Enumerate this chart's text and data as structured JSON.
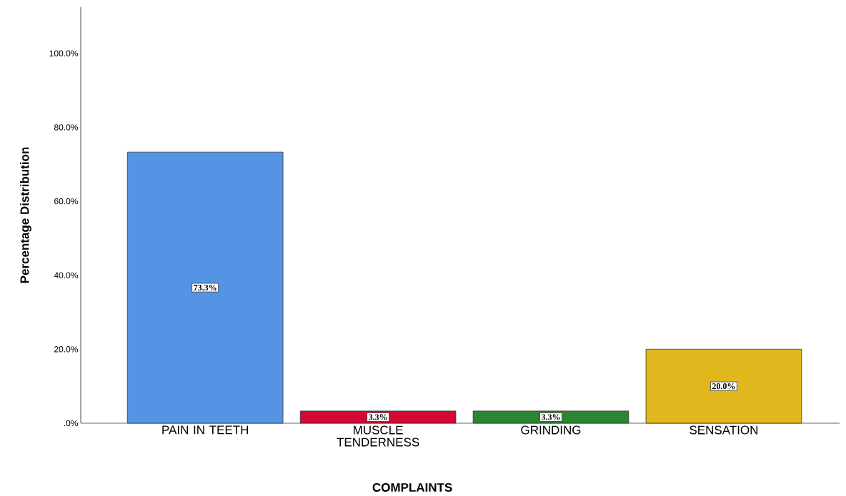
{
  "chart_data": {
    "type": "bar",
    "xlabel": "COMPLAINTS",
    "ylabel": "Percentage Distribution",
    "categories": [
      "PAIN IN TEETH",
      "MUSCLE TENDERNESS",
      "GRINDING",
      "SENSATION"
    ],
    "values": [
      73.3,
      3.3,
      3.3,
      20.0
    ],
    "colors": [
      "#5594e4",
      "#d40a35",
      "#2c8530",
      "#e0b81e"
    ],
    "value_labels": [
      "73.3%",
      "3.3%",
      "3.3%",
      "20.0%"
    ],
    "ylim": [
      0,
      112.5
    ],
    "yticks": [
      {
        "value": 0,
        "label": ".0%"
      },
      {
        "value": 20,
        "label": "20.0%"
      },
      {
        "value": 40,
        "label": "40.0%"
      },
      {
        "value": 60,
        "label": "60.0%"
      },
      {
        "value": 80,
        "label": "80.0%"
      },
      {
        "value": 100,
        "label": "100.0%"
      }
    ],
    "grid": false
  }
}
